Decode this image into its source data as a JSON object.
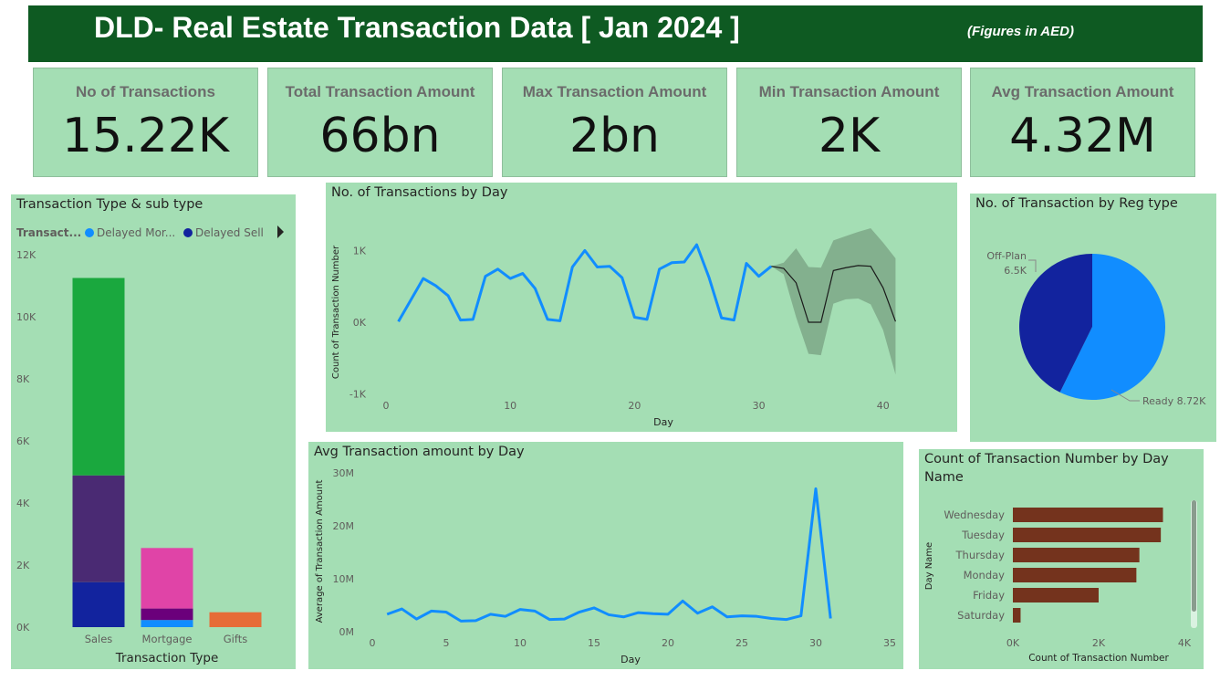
{
  "header": {
    "title": "DLD- Real Estate Transaction Data [ Jan 2024 ]",
    "note": "(Figures in AED)"
  },
  "kpis": [
    {
      "label": "No of Transactions",
      "value": "15.22K"
    },
    {
      "label": "Total Transaction Amount",
      "value": "66bn"
    },
    {
      "label": "Max Transaction Amount",
      "value": "2bn"
    },
    {
      "label": "Min Transaction Amount",
      "value": "2K"
    },
    {
      "label": "Avg Transaction Amount",
      "value": "4.32M"
    }
  ],
  "type_chart": {
    "title": "Transaction Type & sub type",
    "legend_title": "Transact...",
    "legend_items": [
      {
        "name": "Delayed Mor...",
        "color": "#118dff"
      },
      {
        "name": "Delayed Sell",
        "color": "#12239e"
      }
    ],
    "y_ticks": [
      "0K",
      "2K",
      "4K",
      "6K",
      "8K",
      "10K",
      "12K"
    ],
    "x_title": "Transaction Type"
  },
  "day_chart": {
    "title": "No. of Transactions by Day",
    "y_title": "Count of Transaction Number",
    "x_title": "Day",
    "y_ticks": [
      "-1K",
      "0K",
      "1K"
    ],
    "x_ticks": [
      "0",
      "10",
      "20",
      "30",
      "40"
    ]
  },
  "avg_chart": {
    "title": "Avg Transaction amount by Day",
    "y_title": "Average of Transaction Amount",
    "x_title": "Day",
    "y_ticks": [
      "0M",
      "10M",
      "20M",
      "30M"
    ],
    "x_ticks": [
      "0",
      "5",
      "10",
      "15",
      "20",
      "25",
      "30",
      "35"
    ]
  },
  "reg_chart": {
    "title": "No. of Transaction by Reg type",
    "labels": [
      "Off-Plan",
      "6.5K",
      "Ready 8.72K"
    ]
  },
  "dayname_chart": {
    "title_line1": "Count of Transaction Number by Day",
    "title_line2": "Name",
    "y_title": "Day Name",
    "x_title": "Count of Transaction Number",
    "x_ticks": [
      "0K",
      "2K",
      "4K"
    ]
  },
  "chart_data": [
    {
      "type": "bar",
      "title": "Transaction Type & sub type",
      "xlabel": "Transaction Type",
      "categories": [
        "Sales",
        "Mortgage",
        "Gifts"
      ],
      "ylim": [
        0,
        12000
      ],
      "stacks": [
        {
          "category": "Sales",
          "segments": [
            {
              "value": 1450,
              "color": "#12239e"
            },
            {
              "value": 3440,
              "color": "#4a2a73"
            },
            {
              "value": 6360,
              "color": "#1aa83e"
            }
          ]
        },
        {
          "category": "Mortgage",
          "segments": [
            {
              "value": 230,
              "color": "#118dff"
            },
            {
              "value": 370,
              "color": "#6b007b"
            },
            {
              "value": 1950,
              "color": "#e044a7"
            }
          ]
        },
        {
          "category": "Gifts",
          "segments": [
            {
              "value": 480,
              "color": "#e66c37"
            }
          ]
        }
      ]
    },
    {
      "type": "line",
      "title": "No. of Transactions by Day",
      "xlabel": "Day",
      "ylabel": "Count of Transaction Number",
      "xlim": [
        -1,
        42
      ],
      "ylim": [
        -1000,
        1300
      ],
      "series": [
        {
          "color": "#118dff",
          "x": [
            1,
            2,
            3,
            4,
            5,
            6,
            7,
            8,
            9,
            10,
            11,
            12,
            13,
            14,
            15,
            16,
            17,
            18,
            19,
            20,
            21,
            22,
            23,
            24,
            25,
            26,
            27,
            28,
            29,
            30,
            31
          ],
          "y": [
            10,
            310,
            610,
            510,
            370,
            30,
            40,
            640,
            740,
            610,
            680,
            470,
            40,
            20,
            770,
            1000,
            770,
            780,
            620,
            70,
            40,
            740,
            830,
            840,
            1080,
            620,
            60,
            30,
            820,
            640,
            780
          ]
        }
      ],
      "forecast": {
        "x": [
          31,
          32,
          33,
          34,
          35,
          36,
          37,
          38,
          39,
          40,
          41
        ],
        "y": [
          780,
          750,
          550,
          0,
          0,
          720,
          760,
          790,
          780,
          480,
          10
        ],
        "upper": [
          780,
          830,
          1030,
          770,
          760,
          1140,
          1200,
          1260,
          1310,
          1110,
          890
        ],
        "lower": [
          780,
          670,
          70,
          -440,
          -460,
          260,
          320,
          330,
          250,
          -110,
          -730
        ]
      }
    },
    {
      "type": "line",
      "title": "Avg Transaction amount by Day",
      "xlabel": "Day",
      "ylabel": "Average of Transaction Amount",
      "xlim": [
        0,
        35
      ],
      "ylim": [
        0,
        30000000
      ],
      "series": [
        {
          "color": "#118dff",
          "x": [
            1,
            2,
            3,
            4,
            5,
            6,
            7,
            8,
            9,
            10,
            11,
            12,
            13,
            14,
            15,
            16,
            17,
            18,
            19,
            20,
            21,
            22,
            23,
            24,
            25,
            26,
            27,
            28,
            29,
            30,
            31
          ],
          "y": [
            3300000,
            4300000,
            2400000,
            3900000,
            3700000,
            2000000,
            2100000,
            3300000,
            2900000,
            4200000,
            3900000,
            2300000,
            2400000,
            3700000,
            4500000,
            3200000,
            2800000,
            3600000,
            3400000,
            3300000,
            5800000,
            3500000,
            4700000,
            2800000,
            3000000,
            2900000,
            2500000,
            2300000,
            3000000,
            27000000,
            2500000
          ]
        }
      ]
    },
    {
      "type": "pie",
      "title": "No. of Transaction by Reg type",
      "slices": [
        {
          "label": "Ready",
          "value": 8720,
          "color": "#118dff"
        },
        {
          "label": "Off-Plan",
          "value": 6500,
          "color": "#12239e"
        }
      ]
    },
    {
      "type": "bar",
      "orientation": "horizontal",
      "title": "Count of Transaction Number by Day Name",
      "xlabel": "Count of Transaction Number",
      "ylabel": "Day Name",
      "xlim": [
        0,
        4000
      ],
      "categories": [
        "Wednesday",
        "Tuesday",
        "Thursday",
        "Monday",
        "Friday",
        "Saturday"
      ],
      "values": [
        3500,
        3450,
        2950,
        2880,
        2000,
        180
      ],
      "color": "#74331d"
    }
  ]
}
